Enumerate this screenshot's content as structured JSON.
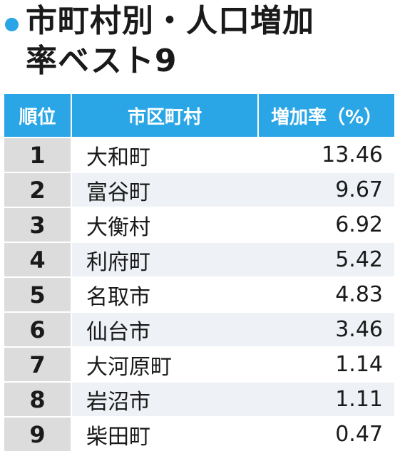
{
  "title": {
    "line1": "市町村別・人口増加",
    "line2": "率ベスト9"
  },
  "table": {
    "headers": {
      "rank": "順位",
      "name": "市区町村",
      "rate": "増加率（%）"
    },
    "rows": [
      {
        "rank": "1",
        "name": "大和町",
        "rate": "13.46"
      },
      {
        "rank": "2",
        "name": "富谷町",
        "rate": "9.67"
      },
      {
        "rank": "3",
        "name": "大衡村",
        "rate": "6.92"
      },
      {
        "rank": "4",
        "name": "利府町",
        "rate": "5.42"
      },
      {
        "rank": "5",
        "name": "名取市",
        "rate": "4.83"
      },
      {
        "rank": "6",
        "name": "仙台市",
        "rate": "3.46"
      },
      {
        "rank": "7",
        "name": "大河原町",
        "rate": "1.14"
      },
      {
        "rank": "8",
        "name": "岩沼市",
        "rate": "1.11"
      },
      {
        "rank": "9",
        "name": "柴田町",
        "rate": "0.47"
      }
    ]
  },
  "colors": {
    "accent": "#2aa6e6",
    "rank_cell": "#dcdcdc",
    "stripe": "#eef1f6"
  }
}
